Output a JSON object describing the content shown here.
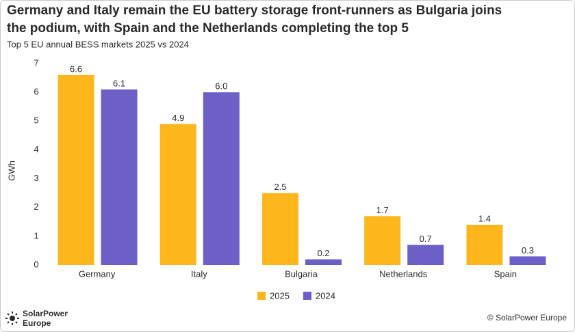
{
  "chart_data": {
    "type": "bar",
    "title": [
      "Germany and Italy remain the EU battery storage front-runners as Bulgaria joins",
      "the podium, with Spain and the Netherlands completing the top 5"
    ],
    "subtitle": "Top 5 EU annual BESS markets 2025 vs 2024",
    "y_label": "GWh",
    "categories": [
      "Germany",
      "Italy",
      "Bulgaria",
      "Netherlands",
      "Spain"
    ],
    "series": [
      {
        "name": "2025",
        "color": "#fdb71c",
        "values": [
          6.6,
          4.9,
          2.5,
          1.7,
          1.4
        ],
        "value_labels": [
          "6.6",
          "4.9",
          "2.5",
          "1.7",
          "1.4"
        ]
      },
      {
        "name": "2024",
        "color": "#6c5fc7",
        "values": [
          6.1,
          6,
          0.2,
          0.7,
          0.3
        ],
        "value_labels": [
          "6.1",
          "6.0",
          "0.2",
          "0.7",
          "0.3"
        ]
      }
    ],
    "ylim": [
      0,
      7
    ],
    "yticks": [
      0,
      1,
      2,
      3,
      4,
      5,
      6,
      7
    ],
    "grid": false,
    "legend": "bottom"
  },
  "footer": {
    "logo": [
      "SolarPower",
      "Europe"
    ],
    "copyright": "© SolarPower Europe"
  }
}
